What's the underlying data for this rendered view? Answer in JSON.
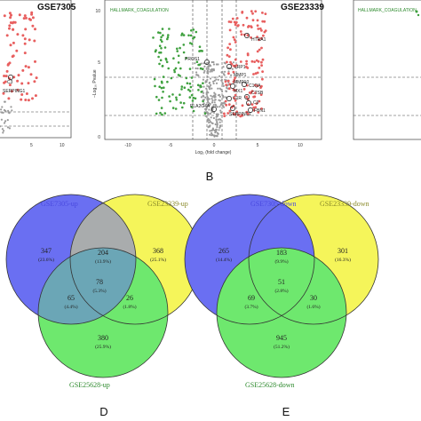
{
  "colors": {
    "set1": "#6a6ff2",
    "set2": "#f5f55a",
    "set3": "#6ee86e",
    "up_points": "#e85f5f",
    "down_points": "#3ea03e",
    "ns_points": "#9a9a9a",
    "title_blue": "#4a4ae0",
    "title_olive": "#8a8a2a",
    "title_green": "#2e8a2e"
  },
  "volcano": {
    "left": {
      "title": "GSE7305",
      "genes": [
        "C3",
        "SERPING1"
      ],
      "x_ticks": [
        "5",
        "10"
      ]
    },
    "middle": {
      "title": "GSE23339",
      "hallmark": "HALLMARK_COAGULATION",
      "xlabel": "Log₂ (fold change)",
      "ylabel": "−Log₁₀ Pvalue",
      "x_ticks": [
        "-10",
        "-5",
        "0",
        "5",
        "10"
      ],
      "y_ticks": [
        "10",
        "5",
        "0"
      ],
      "genes_left": [
        "PROS1",
        "PLA2G4A"
      ],
      "genes_right": [
        "HTRA1",
        "LRP1",
        "MMP1",
        "MMP10",
        "C1QA",
        "MX1",
        "C1R",
        "CTSB",
        "C9",
        "SERPINC1",
        "FBN1"
      ]
    },
    "right": {
      "hallmark": "HALLMARK_COAGULATION"
    },
    "panel_label": "B"
  },
  "venn": {
    "up": {
      "set1": "GSE7305-up",
      "set2": "GSE23339-up",
      "set3": "GSE25628-up",
      "regions": {
        "only1": {
          "count": "347",
          "pct": "(23.6%)"
        },
        "only2": {
          "count": "368",
          "pct": "(25.1%)"
        },
        "only3": {
          "count": "380",
          "pct": "(25.9%)"
        },
        "s12": {
          "count": "204",
          "pct": "(13.9%)"
        },
        "s13": {
          "count": "65",
          "pct": "(4.4%)"
        },
        "s23": {
          "count": "26",
          "pct": "(1.8%)"
        },
        "s123": {
          "count": "78",
          "pct": "(5.3%)"
        }
      },
      "panel_label": "D"
    },
    "down": {
      "set1": "GSE7305-down",
      "set2": "GSE23339-down",
      "set3": "GSE25628-down",
      "regions": {
        "only1": {
          "count": "265",
          "pct": "(14.4%)"
        },
        "only2": {
          "count": "301",
          "pct": "(16.3%)"
        },
        "only3": {
          "count": "945",
          "pct": "(51.2%)"
        },
        "s12": {
          "count": "183",
          "pct": "(9.9%)"
        },
        "s13": {
          "count": "69",
          "pct": "(3.7%)"
        },
        "s23": {
          "count": "30",
          "pct": "(1.6%)"
        },
        "s123": {
          "count": "51",
          "pct": "(2.8%)"
        }
      },
      "panel_label": "E"
    }
  }
}
